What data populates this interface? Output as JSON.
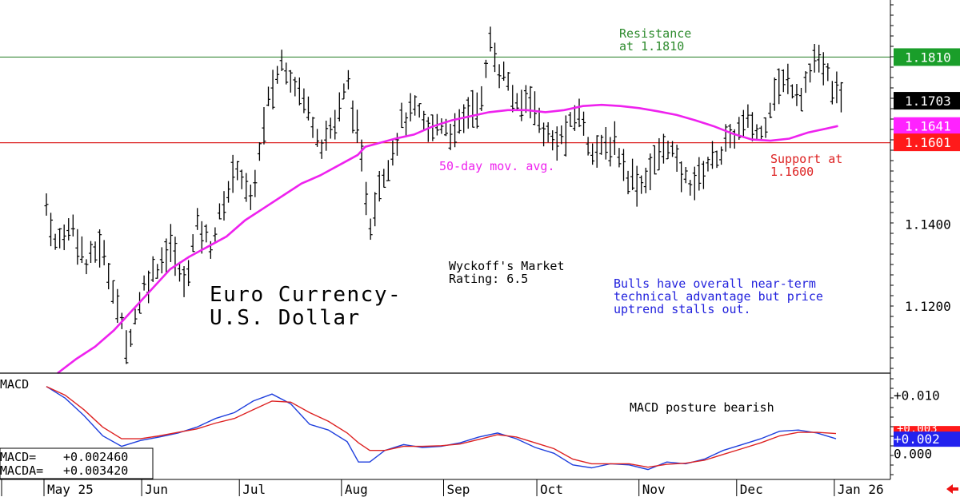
{
  "chart_data": [
    {
      "type": "ohlc",
      "title": "Euro Currency-\nU.S. Dollar",
      "title_lines": [
        "Euro Currency-",
        "U.S. Dollar"
      ],
      "ylim": [
        1.1035,
        1.195
      ],
      "y_ticks": [
        {
          "value": 1.14,
          "label": "1.1400"
        },
        {
          "value": 1.12,
          "label": "1.1200"
        }
      ],
      "price_tags": [
        {
          "value": 1.181,
          "label": "1.1810",
          "bg": "#1a9e2a",
          "fg": "#ffffff"
        },
        {
          "value": 1.1703,
          "label": "1.1703",
          "bg": "#000000",
          "fg": "#ffffff"
        },
        {
          "value": 1.1641,
          "label": "1.1641",
          "bg": "#ff22ff",
          "fg": "#ffffff"
        },
        {
          "value": 1.1601,
          "label": "1.1601",
          "bg": "#ff1a1a",
          "fg": "#ffffff"
        }
      ],
      "reference_lines": [
        {
          "name": "resistance",
          "value": 1.181,
          "color": "#3a8a3a"
        },
        {
          "name": "support",
          "value": 1.16,
          "color": "#dd2222"
        }
      ],
      "annotations": {
        "resistance": [
          "Resistance",
          "at 1.1810"
        ],
        "support": [
          "Support at",
          "1.1600"
        ],
        "moving_average": "50-day mov. avg.",
        "rating": [
          "Wyckoff's Market",
          "Rating: 6.5"
        ],
        "commentary": [
          "Bulls have overall near-term",
          "technical advantage but price",
          "uptrend stalls out."
        ]
      },
      "moving_average": {
        "name": "50-day mov. avg.",
        "color": "#ee22ee",
        "points": [
          [
            0,
            1.1035
          ],
          [
            5,
            1.107
          ],
          [
            10,
            1.11
          ],
          [
            15,
            1.114
          ],
          [
            20,
            1.119
          ],
          [
            25,
            1.124
          ],
          [
            30,
            1.129
          ],
          [
            35,
            1.132
          ],
          [
            40,
            1.1345
          ],
          [
            45,
            1.137
          ],
          [
            50,
            1.141
          ],
          [
            55,
            1.144
          ],
          [
            60,
            1.147
          ],
          [
            65,
            1.15
          ],
          [
            70,
            1.152
          ],
          [
            75,
            1.1545
          ],
          [
            80,
            1.157
          ],
          [
            82,
            1.159
          ],
          [
            86,
            1.16
          ],
          [
            90,
            1.161
          ],
          [
            95,
            1.162
          ],
          [
            100,
            1.164
          ],
          [
            105,
            1.1655
          ],
          [
            110,
            1.1665
          ],
          [
            115,
            1.1675
          ],
          [
            120,
            1.168
          ],
          [
            125,
            1.168
          ],
          [
            130,
            1.1675
          ],
          [
            135,
            1.168
          ],
          [
            140,
            1.169
          ],
          [
            145,
            1.1693
          ],
          [
            150,
            1.169
          ],
          [
            155,
            1.1685
          ],
          [
            160,
            1.1677
          ],
          [
            165,
            1.1668
          ],
          [
            170,
            1.1655
          ],
          [
            175,
            1.164
          ],
          [
            180,
            1.1622
          ],
          [
            185,
            1.1608
          ],
          [
            190,
            1.1605
          ],
          [
            195,
            1.161
          ],
          [
            200,
            1.1625
          ],
          [
            205,
            1.1635
          ],
          [
            208,
            1.1641
          ]
        ]
      },
      "x_months": [
        {
          "label": "May 25",
          "bar": 0
        },
        {
          "label": "Jun",
          "bar": 22
        },
        {
          "label": "Jul",
          "bar": 44
        },
        {
          "label": "Aug",
          "bar": 67
        },
        {
          "label": "Sep",
          "bar": 90
        },
        {
          "label": "Oct",
          "bar": 111
        },
        {
          "label": "Nov",
          "bar": 134
        },
        {
          "label": "Dec",
          "bar": 156
        },
        {
          "label": "Jan 26",
          "bar": 178
        }
      ],
      "keypoints": [
        [
          0,
          1.145
        ],
        [
          2,
          1.135
        ],
        [
          6,
          1.14
        ],
        [
          9,
          1.13
        ],
        [
          12,
          1.135
        ],
        [
          15,
          1.125
        ],
        [
          18,
          1.11
        ],
        [
          22,
          1.125
        ],
        [
          25,
          1.13
        ],
        [
          28,
          1.135
        ],
        [
          31,
          1.125
        ],
        [
          34,
          1.14
        ],
        [
          37,
          1.135
        ],
        [
          40,
          1.145
        ],
        [
          43,
          1.155
        ],
        [
          46,
          1.145
        ],
        [
          50,
          1.17
        ],
        [
          53,
          1.18
        ],
        [
          56,
          1.175
        ],
        [
          59,
          1.168
        ],
        [
          62,
          1.16
        ],
        [
          65,
          1.165
        ],
        [
          68,
          1.175
        ],
        [
          71,
          1.155
        ],
        [
          73,
          1.14
        ],
        [
          75,
          1.15
        ],
        [
          78,
          1.158
        ],
        [
          80,
          1.165
        ],
        [
          83,
          1.168
        ],
        [
          86,
          1.163
        ],
        [
          89,
          1.165
        ],
        [
          92,
          1.162
        ],
        [
          95,
          1.168
        ],
        [
          98,
          1.17
        ],
        [
          100,
          1.185
        ],
        [
          102,
          1.178
        ],
        [
          104,
          1.175
        ],
        [
          106,
          1.168
        ],
        [
          109,
          1.172
        ],
        [
          111,
          1.165
        ],
        [
          114,
          1.16
        ],
        [
          117,
          1.162
        ],
        [
          120,
          1.168
        ],
        [
          122,
          1.16
        ],
        [
          125,
          1.158
        ],
        [
          128,
          1.16
        ],
        [
          131,
          1.152
        ],
        [
          134,
          1.15
        ],
        [
          137,
          1.155
        ],
        [
          140,
          1.16
        ],
        [
          143,
          1.152
        ],
        [
          146,
          1.15
        ],
        [
          149,
          1.155
        ],
        [
          152,
          1.158
        ],
        [
          155,
          1.162
        ],
        [
          158,
          1.165
        ],
        [
          161,
          1.162
        ],
        [
          164,
          1.173
        ],
        [
          167,
          1.175
        ],
        [
          170,
          1.172
        ],
        [
          173,
          1.18
        ],
        [
          175,
          1.178
        ],
        [
          177,
          1.174
        ],
        [
          179,
          1.17
        ]
      ]
    },
    {
      "type": "line",
      "title": "MACD",
      "ylim": [
        -0.0045,
        0.0138
      ],
      "y_ticks": [
        {
          "value": 0.01,
          "label": "+0.010"
        },
        {
          "value": 0.0,
          "label": "0.000"
        }
      ],
      "price_tags": [
        {
          "value": 0.0025,
          "label": "+0.002",
          "bg": "#2222ee",
          "fg": "#ffffff",
          "under": {
            "bg": "#ff1a1a",
            "label": "+0.003"
          }
        }
      ],
      "annotation": "MACD posture bearish",
      "readout": {
        "macd_label": "MACD=",
        "macd_value": "+0.002460",
        "macda_label": "MACDA=",
        "macda_value": "+0.003420"
      },
      "series": [
        {
          "name": "MACD",
          "color": "#1f3fdd",
          "points": [
            [
              0,
              0.0115
            ],
            [
              5,
              0.0095
            ],
            [
              10,
              0.0065
            ],
            [
              15,
              0.003
            ],
            [
              20,
              0.0012
            ],
            [
              25,
              0.0022
            ],
            [
              30,
              0.0028
            ],
            [
              35,
              0.0035
            ],
            [
              40,
              0.0045
            ],
            [
              45,
              0.006
            ],
            [
              50,
              0.007
            ],
            [
              55,
              0.009
            ],
            [
              60,
              0.0102
            ],
            [
              65,
              0.0085
            ],
            [
              70,
              0.005
            ],
            [
              75,
              0.004
            ],
            [
              80,
              0.002
            ],
            [
              83,
              -0.0015
            ],
            [
              86,
              -0.0015
            ],
            [
              90,
              0.0005
            ],
            [
              95,
              0.0015
            ],
            [
              100,
              0.001
            ],
            [
              105,
              0.0012
            ],
            [
              110,
              0.0018
            ],
            [
              115,
              0.0028
            ],
            [
              120,
              0.0035
            ],
            [
              125,
              0.0025
            ],
            [
              130,
              0.001
            ],
            [
              135,
              0.0
            ],
            [
              140,
              -0.002
            ],
            [
              145,
              -0.0025
            ],
            [
              150,
              -0.0018
            ],
            [
              155,
              -0.002
            ],
            [
              160,
              -0.0028
            ],
            [
              165,
              -0.0015
            ],
            [
              170,
              -0.0018
            ],
            [
              175,
              -0.001
            ],
            [
              180,
              0.0005
            ],
            [
              185,
              0.0015
            ],
            [
              190,
              0.0025
            ],
            [
              195,
              0.0038
            ],
            [
              200,
              0.004
            ],
            [
              205,
              0.0035
            ],
            [
              210,
              0.0025
            ]
          ]
        },
        {
          "name": "MACDA",
          "color": "#dd2222",
          "points": [
            [
              0,
              0.0115
            ],
            [
              5,
              0.01
            ],
            [
              10,
              0.0075
            ],
            [
              15,
              0.0045
            ],
            [
              20,
              0.0025
            ],
            [
              25,
              0.0025
            ],
            [
              30,
              0.003
            ],
            [
              35,
              0.0036
            ],
            [
              40,
              0.0042
            ],
            [
              45,
              0.0052
            ],
            [
              50,
              0.006
            ],
            [
              55,
              0.0075
            ],
            [
              60,
              0.009
            ],
            [
              65,
              0.0088
            ],
            [
              70,
              0.007
            ],
            [
              75,
              0.0055
            ],
            [
              80,
              0.0035
            ],
            [
              83,
              0.0018
            ],
            [
              86,
              0.0005
            ],
            [
              90,
              0.0005
            ],
            [
              95,
              0.0012
            ],
            [
              100,
              0.0012
            ],
            [
              105,
              0.0013
            ],
            [
              110,
              0.0016
            ],
            [
              115,
              0.0024
            ],
            [
              120,
              0.0032
            ],
            [
              125,
              0.0028
            ],
            [
              130,
              0.0018
            ],
            [
              135,
              0.0008
            ],
            [
              140,
              -0.001
            ],
            [
              145,
              -0.0018
            ],
            [
              150,
              -0.0018
            ],
            [
              155,
              -0.0018
            ],
            [
              160,
              -0.0024
            ],
            [
              165,
              -0.0019
            ],
            [
              170,
              -0.0017
            ],
            [
              175,
              -0.0012
            ],
            [
              180,
              -0.0002
            ],
            [
              185,
              0.0008
            ],
            [
              190,
              0.0018
            ],
            [
              195,
              0.003
            ],
            [
              200,
              0.0036
            ],
            [
              205,
              0.0036
            ],
            [
              210,
              0.0034
            ]
          ]
        }
      ]
    }
  ],
  "icons": {
    "nav": "left-arrow-icon",
    "nav_color": "#ee1111"
  }
}
